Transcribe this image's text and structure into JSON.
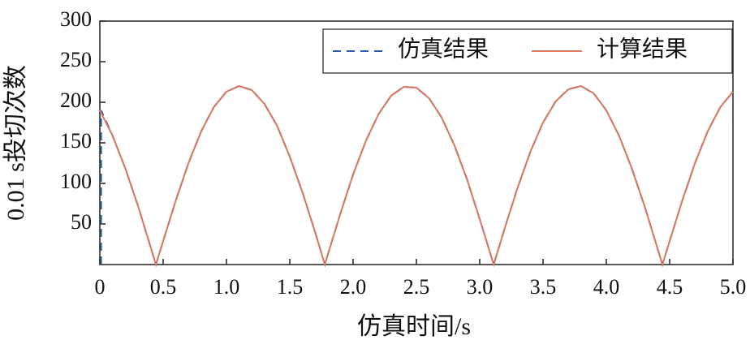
{
  "chart_data": {
    "type": "line",
    "xlabel": "仿真时间/s",
    "ylabel": "0.01 s投切次数",
    "xlim": [
      0,
      5.0
    ],
    "ylim": [
      0,
      300
    ],
    "xticks": [
      0,
      0.5,
      {
        "value": 1.0,
        "label": "1.0"
      },
      1.5,
      {
        "value": 2.0,
        "label": "2.0"
      },
      2.5,
      {
        "value": 3.0,
        "label": "3.0"
      },
      3.5,
      {
        "value": 4.0,
        "label": "4.0"
      },
      4.5,
      {
        "value": 5.0,
        "label": "5.0"
      }
    ],
    "yticks": [
      50,
      100,
      150,
      200,
      250,
      300
    ],
    "legend": "upper right",
    "series": [
      {
        "name": "仿真结果",
        "color": "#2a5caa",
        "dashed": true,
        "x": [
          0.01,
          0.01,
          0.1,
          0.2,
          0.3,
          0.4,
          0.443,
          0.5,
          0.6,
          0.7,
          0.8,
          0.9,
          1.0,
          1.1,
          1.2,
          1.3,
          1.4,
          1.5,
          1.6,
          1.7,
          1.777,
          1.8,
          1.9,
          2.0,
          2.1,
          2.2,
          2.3,
          2.4,
          2.5,
          2.6,
          2.7,
          2.8,
          2.9,
          3.0,
          3.11,
          3.2,
          3.3,
          3.4,
          3.5,
          3.6,
          3.7,
          3.8,
          3.9,
          4.0,
          4.1,
          4.2,
          4.3,
          4.4,
          4.443,
          4.5,
          4.6,
          4.7,
          4.8,
          4.9,
          5.0
        ],
        "values": [
          0,
          190,
          159,
          119,
          73,
          22,
          0,
          29,
          79,
          125,
          164,
          194,
          213,
          220,
          215,
          198,
          171,
          133,
          89,
          40,
          0,
          12,
          63,
          111,
          152,
          185,
          208,
          219,
          218,
          205,
          181,
          147,
          105,
          56,
          0,
          46,
          95,
          139,
          175,
          201,
          216,
          220,
          211,
          190,
          159,
          119,
          73,
          22,
          0,
          29,
          79,
          125,
          164,
          194,
          213
        ]
      },
      {
        "name": "计算结果",
        "color": "#d9785e",
        "dashed": false,
        "x": [
          0,
          0.1,
          0.2,
          0.3,
          0.4,
          0.443,
          0.5,
          0.6,
          0.7,
          0.8,
          0.9,
          1.0,
          1.1,
          1.2,
          1.3,
          1.4,
          1.5,
          1.6,
          1.7,
          1.777,
          1.8,
          1.9,
          2.0,
          2.1,
          2.2,
          2.3,
          2.4,
          2.5,
          2.6,
          2.7,
          2.8,
          2.9,
          3.0,
          3.11,
          3.2,
          3.3,
          3.4,
          3.5,
          3.6,
          3.7,
          3.8,
          3.9,
          4.0,
          4.1,
          4.2,
          4.3,
          4.4,
          4.443,
          4.5,
          4.6,
          4.7,
          4.8,
          4.9,
          5.0
        ],
        "values": [
          190,
          159,
          119,
          73,
          22,
          0,
          29,
          79,
          125,
          164,
          194,
          213,
          220,
          215,
          198,
          171,
          133,
          89,
          40,
          0,
          12,
          63,
          111,
          152,
          185,
          208,
          219,
          218,
          205,
          181,
          147,
          105,
          56,
          0,
          46,
          95,
          139,
          175,
          201,
          216,
          220,
          211,
          190,
          159,
          119,
          73,
          22,
          0,
          29,
          79,
          125,
          164,
          194,
          213
        ]
      }
    ]
  }
}
